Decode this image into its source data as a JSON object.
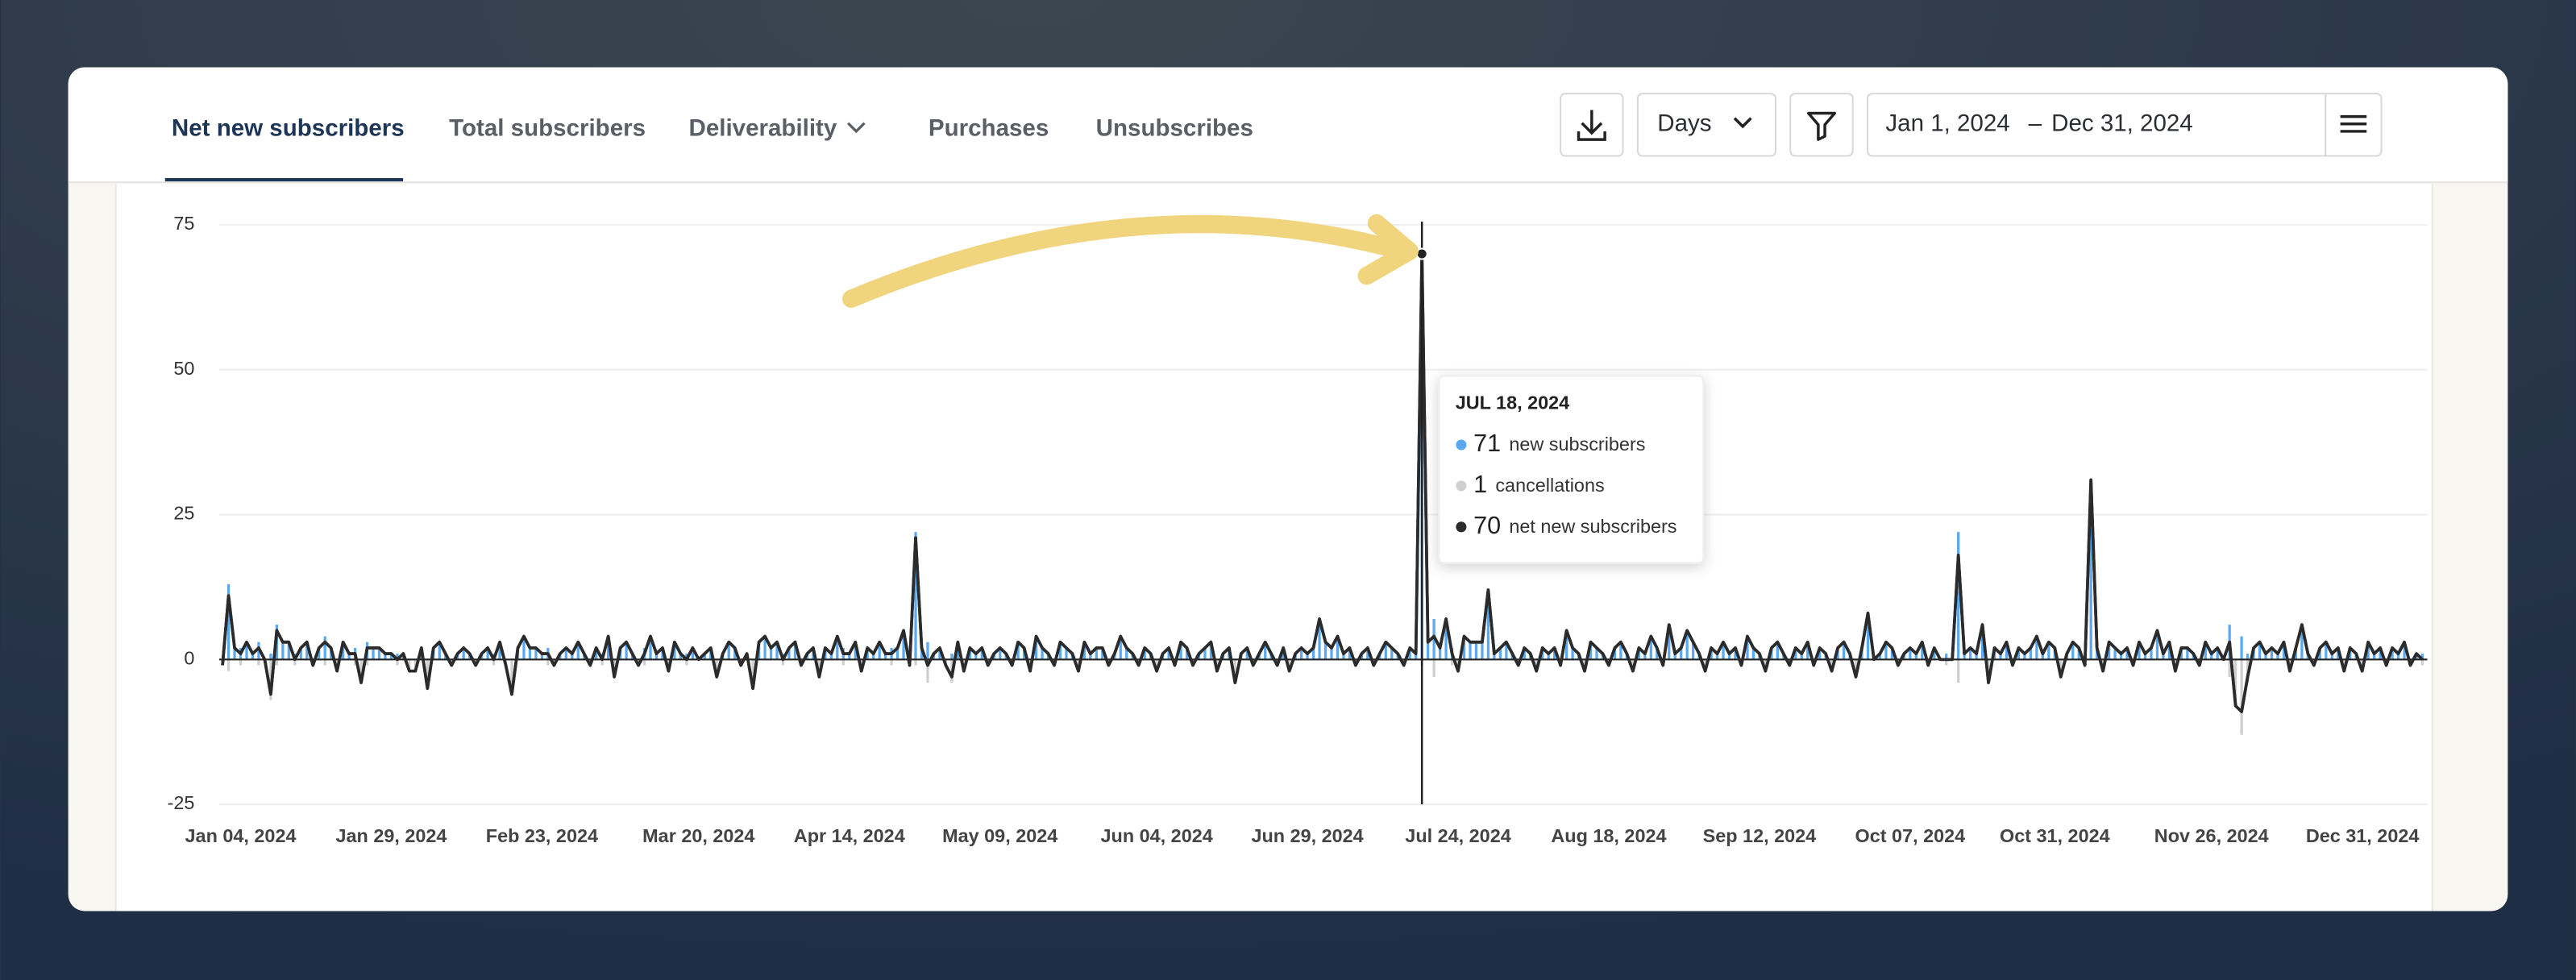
{
  "ui": {
    "tabs": [
      "Net new subscribers",
      "Total subscribers",
      "Deliverability",
      "Purchases",
      "Unsubscribes"
    ],
    "period": "Days",
    "date_from": "Jan 1, 2024",
    "date_separator": "–",
    "date_to": "Dec 31, 2024"
  },
  "chart_data": {
    "type": "combo",
    "tooltip_title": "JUL 18, 2024",
    "categories": [
      null,
      null,
      null,
      "Jan 04, 2024",
      null,
      null,
      null,
      null,
      null,
      null,
      null,
      null,
      null,
      null,
      null,
      null,
      null,
      null,
      null,
      null,
      null,
      null,
      null,
      null,
      null,
      null,
      null,
      null,
      "Jan 29, 2024",
      null,
      null,
      null,
      null,
      null,
      null,
      null,
      null,
      null,
      null,
      null,
      null,
      null,
      null,
      null,
      null,
      null,
      null,
      null,
      null,
      null,
      null,
      null,
      null,
      "Feb 23, 2024",
      null,
      null,
      null,
      null,
      null,
      null,
      null,
      null,
      null,
      null,
      null,
      null,
      null,
      null,
      null,
      null,
      null,
      null,
      null,
      null,
      null,
      null,
      null,
      null,
      null,
      "Mar 20, 2024",
      null,
      null,
      null,
      null,
      null,
      null,
      null,
      null,
      null,
      null,
      null,
      null,
      null,
      null,
      null,
      null,
      null,
      null,
      null,
      null,
      null,
      null,
      null,
      null,
      "Apr 14, 2024",
      null,
      null,
      null,
      null,
      null,
      null,
      null,
      null,
      null,
      null,
      null,
      null,
      null,
      null,
      null,
      null,
      null,
      null,
      null,
      null,
      null,
      null,
      null,
      null,
      "May 09, 2024",
      null,
      null,
      null,
      null,
      null,
      null,
      null,
      null,
      null,
      null,
      null,
      null,
      null,
      null,
      null,
      null,
      null,
      null,
      null,
      null,
      null,
      null,
      null,
      null,
      null,
      "Jun 04, 2024",
      null,
      null,
      null,
      null,
      null,
      null,
      null,
      null,
      null,
      null,
      null,
      null,
      null,
      null,
      null,
      null,
      null,
      null,
      null,
      null,
      null,
      null,
      null,
      null,
      "Jun 29, 2024",
      null,
      null,
      null,
      null,
      null,
      null,
      null,
      null,
      null,
      null,
      null,
      null,
      null,
      null,
      null,
      null,
      null,
      null,
      null,
      null,
      null,
      null,
      null,
      null,
      "Jul 24, 2024",
      null,
      null,
      null,
      null,
      null,
      null,
      null,
      null,
      null,
      null,
      null,
      null,
      null,
      null,
      null,
      null,
      null,
      null,
      null,
      null,
      null,
      null,
      null,
      null,
      "Aug 18, 2024",
      null,
      null,
      null,
      null,
      null,
      null,
      null,
      null,
      null,
      null,
      null,
      null,
      null,
      null,
      null,
      null,
      null,
      null,
      null,
      null,
      null,
      null,
      null,
      null,
      "Sep 12, 2024",
      null,
      null,
      null,
      null,
      null,
      null,
      null,
      null,
      null,
      null,
      null,
      null,
      null,
      null,
      null,
      null,
      null,
      null,
      null,
      null,
      null,
      null,
      null,
      null,
      "Oct 07, 2024",
      null,
      null,
      null,
      null,
      null,
      null,
      null,
      null,
      null,
      null,
      null,
      null,
      null,
      null,
      null,
      null,
      null,
      null,
      null,
      null,
      null,
      null,
      null,
      "Oct 31, 2024",
      null,
      null,
      null,
      null,
      null,
      null,
      null,
      null,
      null,
      null,
      null,
      null,
      null,
      null,
      null,
      null,
      null,
      null,
      null,
      null,
      null,
      null,
      null,
      null,
      null,
      "Nov 26, 2024",
      null,
      null,
      null,
      null,
      null,
      null,
      null,
      null,
      null,
      null,
      null,
      null,
      null,
      null,
      null,
      null,
      null,
      null,
      null,
      null,
      null,
      null,
      null,
      null,
      null,
      null,
      null,
      null,
      null,
      null,
      null,
      null,
      null,
      null,
      "Dec 31, 2024"
    ],
    "series": [
      {
        "name": "new subscribers",
        "type": "bar",
        "direction": "up",
        "color": "#5aa9f0",
        "values": [
          0,
          13,
          2,
          2,
          3,
          1,
          3,
          0,
          1,
          6,
          3,
          3,
          1,
          2,
          3,
          0,
          2,
          4,
          2,
          0,
          3,
          1,
          2,
          0,
          3,
          2,
          2,
          1,
          1,
          1,
          1,
          0,
          0,
          2,
          0,
          2,
          3,
          1,
          0,
          1,
          2,
          1,
          0,
          1,
          2,
          1,
          3,
          0,
          0,
          2,
          4,
          2,
          2,
          1,
          2,
          0,
          1,
          2,
          1,
          3,
          1,
          0,
          2,
          1,
          4,
          0,
          2,
          3,
          1,
          0,
          2,
          4,
          1,
          2,
          0,
          3,
          1,
          1,
          2,
          0,
          1,
          2,
          0,
          1,
          3,
          2,
          0,
          1,
          0,
          3,
          4,
          2,
          3,
          1,
          2,
          3,
          0,
          1,
          2,
          0,
          2,
          1,
          4,
          2,
          1,
          3,
          0,
          2,
          1,
          3,
          1,
          2,
          2,
          5,
          0,
          22,
          2,
          3,
          1,
          2,
          0,
          1,
          3,
          0,
          2,
          1,
          2,
          0,
          1,
          2,
          1,
          0,
          3,
          2,
          0,
          4,
          2,
          1,
          0,
          3,
          2,
          1,
          0,
          3,
          1,
          2,
          2,
          0,
          1,
          4,
          2,
          1,
          0,
          2,
          1,
          0,
          1,
          2,
          0,
          3,
          2,
          0,
          1,
          2,
          3,
          0,
          1,
          2,
          0,
          1,
          2,
          0,
          1,
          3,
          1,
          0,
          2,
          0,
          1,
          2,
          1,
          2,
          7,
          3,
          2,
          4,
          1,
          2,
          0,
          1,
          2,
          0,
          1,
          3,
          2,
          1,
          0,
          2,
          1,
          71,
          3,
          7,
          2,
          7,
          2,
          0,
          4,
          3,
          3,
          3,
          12,
          1,
          2,
          3,
          1,
          0,
          2,
          1,
          0,
          2,
          1,
          2,
          0,
          5,
          2,
          1,
          0,
          3,
          2,
          1,
          0,
          2,
          3,
          1,
          0,
          2,
          1,
          4,
          2,
          0,
          6,
          1,
          2,
          5,
          3,
          1,
          0,
          2,
          1,
          3,
          1,
          2,
          0,
          4,
          2,
          1,
          0,
          2,
          3,
          1,
          0,
          2,
          1,
          3,
          0,
          2,
          1,
          0,
          2,
          3,
          1,
          0,
          2,
          8,
          0,
          1,
          3,
          2,
          0,
          1,
          2,
          1,
          3,
          0,
          2,
          0,
          1,
          0,
          22,
          1,
          2,
          1,
          6,
          0,
          2,
          1,
          3,
          0,
          2,
          1,
          2,
          4,
          1,
          3,
          2,
          0,
          1,
          3,
          2,
          0,
          31,
          2,
          0,
          3,
          2,
          1,
          2,
          0,
          3,
          1,
          2,
          5,
          1,
          3,
          0,
          2,
          2,
          1,
          0,
          3,
          1,
          2,
          0,
          6,
          0,
          4,
          1,
          2,
          3,
          1,
          2,
          1,
          3,
          0,
          2,
          6,
          1,
          0,
          2,
          3,
          1,
          2,
          0,
          2,
          1,
          0,
          3,
          1,
          2,
          0,
          2,
          1,
          3,
          0,
          1,
          1
        ]
      },
      {
        "name": "cancellations",
        "type": "bar",
        "direction": "down",
        "color": "#cfcfcf",
        "values": [
          1,
          2,
          0,
          1,
          0,
          0,
          1,
          0,
          7,
          1,
          0,
          0,
          1,
          0,
          0,
          1,
          0,
          1,
          0,
          2,
          0,
          0,
          1,
          4,
          1,
          0,
          0,
          0,
          0,
          1,
          0,
          2,
          2,
          0,
          5,
          0,
          0,
          0,
          1,
          0,
          0,
          0,
          1,
          0,
          0,
          1,
          0,
          1,
          6,
          0,
          0,
          0,
          0,
          0,
          1,
          1,
          0,
          0,
          0,
          0,
          0,
          1,
          0,
          1,
          0,
          3,
          0,
          0,
          0,
          1,
          1,
          0,
          0,
          0,
          2,
          0,
          0,
          1,
          0,
          0,
          0,
          0,
          3,
          0,
          0,
          0,
          1,
          0,
          5,
          0,
          0,
          0,
          0,
          1,
          0,
          0,
          1,
          0,
          0,
          3,
          0,
          0,
          0,
          1,
          0,
          0,
          2,
          0,
          0,
          0,
          0,
          1,
          0,
          0,
          1,
          1,
          0,
          4,
          0,
          0,
          1,
          4,
          0,
          2,
          0,
          0,
          0,
          1,
          0,
          0,
          0,
          1,
          0,
          0,
          2,
          0,
          0,
          0,
          1,
          0,
          0,
          0,
          2,
          0,
          0,
          0,
          0,
          1,
          0,
          0,
          0,
          0,
          1,
          0,
          0,
          2,
          0,
          0,
          1,
          0,
          0,
          1,
          0,
          0,
          0,
          2,
          0,
          0,
          4,
          0,
          0,
          1,
          0,
          0,
          0,
          1,
          0,
          2,
          0,
          0,
          0,
          0,
          0,
          0,
          0,
          0,
          0,
          0,
          1,
          0,
          0,
          1,
          0,
          0,
          0,
          0,
          1,
          0,
          0,
          1,
          0,
          3,
          0,
          0,
          1,
          2,
          0,
          0,
          0,
          0,
          0,
          0,
          0,
          0,
          0,
          1,
          0,
          0,
          2,
          0,
          0,
          0,
          1,
          0,
          0,
          0,
          2,
          0,
          0,
          0,
          1,
          0,
          0,
          0,
          2,
          0,
          0,
          0,
          0,
          1,
          0,
          0,
          0,
          0,
          0,
          0,
          2,
          0,
          0,
          0,
          0,
          0,
          1,
          0,
          0,
          0,
          2,
          0,
          0,
          0,
          1,
          0,
          0,
          0,
          1,
          0,
          0,
          2,
          0,
          0,
          0,
          3,
          0,
          0,
          0,
          0,
          0,
          0,
          1,
          0,
          0,
          0,
          0,
          1,
          0,
          0,
          1,
          0,
          4,
          0,
          0,
          0,
          0,
          4,
          0,
          0,
          0,
          1,
          0,
          0,
          0,
          0,
          0,
          0,
          0,
          3,
          0,
          0,
          0,
          1,
          0,
          0,
          2,
          0,
          0,
          0,
          0,
          1,
          0,
          0,
          0,
          0,
          0,
          0,
          2,
          0,
          0,
          0,
          1,
          0,
          0,
          0,
          0,
          3,
          8,
          13,
          4,
          0,
          0,
          0,
          0,
          0,
          0,
          2,
          0,
          0,
          0,
          1,
          0,
          0,
          0,
          0,
          2,
          0,
          0,
          2,
          0,
          0,
          0,
          1,
          0,
          0,
          0,
          1,
          0,
          1
        ]
      },
      {
        "name": "net new subscribers",
        "type": "line",
        "color": "#2b2b2b",
        "values": [
          -1,
          11,
          2,
          1,
          3,
          1,
          2,
          0,
          -6,
          5,
          3,
          3,
          0,
          2,
          3,
          -1,
          2,
          3,
          2,
          -2,
          3,
          1,
          1,
          -4,
          2,
          2,
          2,
          1,
          1,
          0,
          1,
          -2,
          -2,
          2,
          -5,
          2,
          3,
          1,
          -1,
          1,
          2,
          1,
          -1,
          1,
          2,
          0,
          3,
          -1,
          -6,
          2,
          4,
          2,
          2,
          1,
          1,
          -1,
          1,
          2,
          1,
          3,
          1,
          -1,
          2,
          0,
          4,
          -3,
          2,
          3,
          1,
          -1,
          1,
          4,
          1,
          2,
          -2,
          3,
          1,
          0,
          2,
          0,
          1,
          2,
          -3,
          1,
          3,
          2,
          -1,
          1,
          -5,
          3,
          4,
          2,
          3,
          0,
          2,
          3,
          -1,
          1,
          2,
          -3,
          2,
          1,
          4,
          1,
          1,
          3,
          -2,
          2,
          1,
          3,
          1,
          1,
          2,
          5,
          -1,
          21,
          2,
          -1,
          1,
          2,
          -1,
          -3,
          3,
          -2,
          2,
          1,
          2,
          -1,
          1,
          2,
          1,
          -1,
          3,
          2,
          -2,
          4,
          2,
          1,
          -1,
          3,
          2,
          1,
          -2,
          3,
          1,
          2,
          2,
          -1,
          1,
          4,
          2,
          1,
          -1,
          2,
          1,
          -2,
          1,
          2,
          -1,
          3,
          2,
          -1,
          1,
          2,
          3,
          -2,
          1,
          2,
          -4,
          1,
          2,
          -1,
          1,
          3,
          1,
          -1,
          2,
          -2,
          1,
          2,
          1,
          2,
          7,
          3,
          2,
          4,
          1,
          2,
          -1,
          1,
          2,
          -1,
          1,
          3,
          2,
          1,
          -1,
          2,
          1,
          70,
          3,
          4,
          2,
          7,
          1,
          -2,
          4,
          3,
          3,
          3,
          12,
          1,
          2,
          3,
          1,
          -1,
          2,
          1,
          -2,
          2,
          1,
          2,
          -1,
          5,
          2,
          1,
          -2,
          3,
          2,
          1,
          -1,
          2,
          3,
          1,
          -2,
          2,
          1,
          4,
          2,
          -1,
          6,
          1,
          2,
          5,
          3,
          1,
          -2,
          2,
          1,
          3,
          1,
          2,
          -1,
          4,
          2,
          1,
          -2,
          2,
          3,
          1,
          -1,
          2,
          1,
          3,
          -1,
          2,
          1,
          -2,
          2,
          3,
          1,
          -3,
          2,
          8,
          0,
          1,
          3,
          2,
          -1,
          1,
          2,
          1,
          3,
          -1,
          2,
          0,
          0,
          0,
          18,
          1,
          2,
          1,
          6,
          -4,
          2,
          1,
          3,
          -1,
          2,
          1,
          2,
          4,
          1,
          3,
          2,
          -3,
          1,
          3,
          2,
          -1,
          31,
          2,
          -2,
          3,
          2,
          1,
          2,
          -1,
          3,
          1,
          2,
          5,
          1,
          3,
          -2,
          2,
          2,
          1,
          -1,
          3,
          1,
          2,
          0,
          3,
          -8,
          -9,
          -3,
          2,
          3,
          1,
          2,
          1,
          3,
          -2,
          2,
          6,
          1,
          -1,
          2,
          3,
          1,
          2,
          -2,
          2,
          1,
          -2,
          3,
          1,
          2,
          -1,
          2,
          1,
          3,
          -1,
          1,
          0
        ]
      }
    ],
    "ylim": [
      -25,
      75
    ],
    "yticks": [
      -25,
      0,
      25,
      50,
      75
    ],
    "grid": true
  }
}
